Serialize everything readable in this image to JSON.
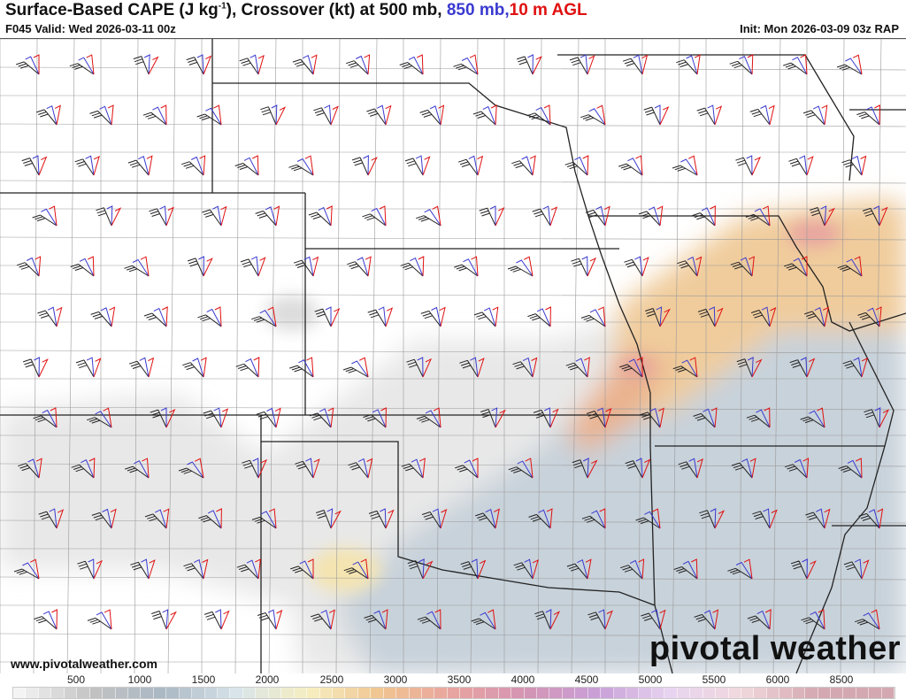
{
  "header": {
    "title_main": "Surface-Based CAPE (J kg",
    "title_sup": "-1",
    "title_rest": "), Crossover (kt) at 500 mb, ",
    "title_blue": "850 mb,",
    "title_red": "10 m AGL",
    "valid": "F045 Valid: Wed 2026-03-11 00z",
    "init": "Init: Mon 2026-03-09 03z RAP"
  },
  "footer": {
    "url": "www.pivotalweather.com",
    "brand": "pivotal weather"
  },
  "colorbar": {
    "labels": [
      "500",
      "1000",
      "1500",
      "2000",
      "2500",
      "3000",
      "3500",
      "4000",
      "4500",
      "5000",
      "5500",
      "6000",
      "8500"
    ],
    "colors": {
      "low": "#f4f4f4",
      "gray": "#c2c2c2",
      "bluegray": "#aab8c4",
      "pale_blue": "#d8e4ea",
      "yellow": "#f6eec0",
      "orange": "#f0c490",
      "salmon": "#e8a4a0",
      "mauve": "#d494b4",
      "purple": "#c8a0d8",
      "lavender": "#e8d4f0",
      "pink": "#f0d8dc",
      "rose": "#d4a8b0"
    }
  },
  "legend_colors": {
    "500mb": "#222222",
    "850mb": "#3a3ad0",
    "10m": "#e01010"
  }
}
